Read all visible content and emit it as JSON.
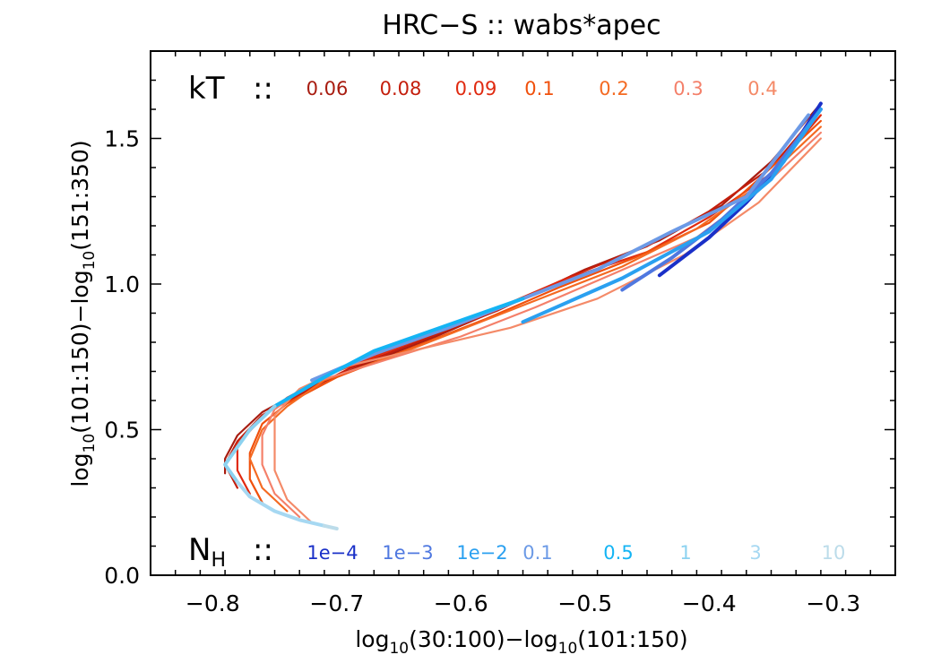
{
  "chart_data": {
    "type": "line",
    "title": "HRC−S :: wabs*apec",
    "xlabel": {
      "pre": "log",
      "sub1": "10",
      "mid": "(30:100)−log",
      "sub2": "10",
      "post": "(101:150)"
    },
    "ylabel": {
      "pre": "log",
      "sub1": "10",
      "mid": "(101:150)−log",
      "sub2": "10",
      "post": "(151:350)"
    },
    "xlim": [
      -0.85,
      -0.25
    ],
    "ylim": [
      0.0,
      1.8
    ],
    "x_ticks": [
      {
        "value": -0.8,
        "label": "−0.8"
      },
      {
        "value": -0.7,
        "label": "−0.7"
      },
      {
        "value": -0.6,
        "label": "−0.6"
      },
      {
        "value": -0.5,
        "label": "−0.5"
      },
      {
        "value": -0.4,
        "label": "−0.4"
      },
      {
        "value": -0.3,
        "label": "−0.3"
      }
    ],
    "y_ticks": [
      {
        "value": 0.0,
        "label": "0.0"
      },
      {
        "value": 0.5,
        "label": "0.5"
      },
      {
        "value": 1.0,
        "label": "1.0"
      },
      {
        "value": 1.5,
        "label": "1.5"
      }
    ],
    "kT_legend": {
      "head": "kT",
      "sep": "::",
      "items": [
        {
          "label": "0.06",
          "color": "#a81c10"
        },
        {
          "label": "0.08",
          "color": "#c41e0c"
        },
        {
          "label": "0.09",
          "color": "#e02a10"
        },
        {
          "label": "0.1",
          "color": "#f0500c"
        },
        {
          "label": "0.2",
          "color": "#f46a22"
        },
        {
          "label": "0.3",
          "color": "#f4806a"
        },
        {
          "label": "0.4",
          "color": "#f48a68"
        }
      ]
    },
    "NH_legend": {
      "head": "N",
      "head_sub": "H",
      "sep": "::",
      "items": [
        {
          "label": "1e−4",
          "color": "#1a30c8"
        },
        {
          "label": "1e−3",
          "color": "#4f78e0"
        },
        {
          "label": "1e−2",
          "color": "#2aa0f0"
        },
        {
          "label": "0.1",
          "color": "#6c9ae6"
        },
        {
          "label": "0.5",
          "color": "#14b4f4"
        },
        {
          "label": "1",
          "color": "#8cd2f0"
        },
        {
          "label": "3",
          "color": "#a6d8f2"
        },
        {
          "label": "10",
          "color": "#bcdcea"
        }
      ]
    },
    "series": [
      {
        "name": "kT=0.06",
        "group": "kT",
        "color": "#a81c10",
        "width": 2.2,
        "x": [
          -0.31,
          -0.35,
          -0.39,
          -0.44,
          -0.5,
          -0.56,
          -0.62,
          -0.68,
          -0.73,
          -0.76,
          -0.78,
          -0.79,
          -0.79
        ],
        "y": [
          1.62,
          1.42,
          1.27,
          1.15,
          1.05,
          0.93,
          0.82,
          0.72,
          0.63,
          0.56,
          0.48,
          0.4,
          0.35
        ]
      },
      {
        "name": "kT=0.08",
        "group": "kT",
        "color": "#c41e0c",
        "width": 2.2,
        "x": [
          -0.31,
          -0.35,
          -0.4,
          -0.45,
          -0.51,
          -0.57,
          -0.63,
          -0.69,
          -0.73,
          -0.76,
          -0.78,
          -0.79,
          -0.78
        ],
        "y": [
          1.6,
          1.4,
          1.25,
          1.13,
          1.03,
          0.91,
          0.81,
          0.71,
          0.62,
          0.55,
          0.46,
          0.38,
          0.3
        ]
      },
      {
        "name": "kT=0.09",
        "group": "kT",
        "color": "#e02a10",
        "width": 2.2,
        "x": [
          -0.31,
          -0.35,
          -0.4,
          -0.45,
          -0.52,
          -0.58,
          -0.64,
          -0.7,
          -0.74,
          -0.76,
          -0.78,
          -0.78,
          -0.77
        ],
        "y": [
          1.58,
          1.38,
          1.23,
          1.11,
          1.01,
          0.9,
          0.8,
          0.7,
          0.61,
          0.54,
          0.45,
          0.36,
          0.28
        ]
      },
      {
        "name": "kT=0.1",
        "group": "kT",
        "color": "#f0500c",
        "width": 2.2,
        "x": [
          -0.31,
          -0.36,
          -0.4,
          -0.46,
          -0.52,
          -0.58,
          -0.64,
          -0.7,
          -0.74,
          -0.76,
          -0.77,
          -0.77,
          -0.76
        ],
        "y": [
          1.56,
          1.36,
          1.21,
          1.09,
          0.99,
          0.88,
          0.78,
          0.68,
          0.59,
          0.52,
          0.42,
          0.33,
          0.25
        ]
      },
      {
        "name": "kT=0.2",
        "group": "kT",
        "color": "#f46a22",
        "width": 2.2,
        "x": [
          -0.31,
          -0.36,
          -0.41,
          -0.47,
          -0.53,
          -0.59,
          -0.65,
          -0.71,
          -0.74,
          -0.76,
          -0.77,
          -0.76,
          -0.74
        ],
        "y": [
          1.54,
          1.34,
          1.19,
          1.06,
          0.96,
          0.86,
          0.76,
          0.67,
          0.58,
          0.5,
          0.4,
          0.3,
          0.22
        ]
      },
      {
        "name": "kT=0.3",
        "group": "kT",
        "color": "#f4806a",
        "width": 2.2,
        "x": [
          -0.31,
          -0.36,
          -0.41,
          -0.48,
          -0.54,
          -0.6,
          -0.66,
          -0.72,
          -0.75,
          -0.76,
          -0.76,
          -0.75,
          -0.73
        ],
        "y": [
          1.52,
          1.32,
          1.16,
          1.03,
          0.92,
          0.82,
          0.74,
          0.66,
          0.57,
          0.48,
          0.38,
          0.28,
          0.2
        ]
      },
      {
        "name": "kT=0.4",
        "group": "kT",
        "color": "#f48a68",
        "width": 2.2,
        "x": [
          -0.31,
          -0.36,
          -0.42,
          -0.49,
          -0.56,
          -0.63,
          -0.69,
          -0.73,
          -0.75,
          -0.75,
          -0.75,
          -0.74,
          -0.72
        ],
        "y": [
          1.5,
          1.28,
          1.1,
          0.95,
          0.85,
          0.78,
          0.72,
          0.64,
          0.55,
          0.46,
          0.36,
          0.26,
          0.18
        ]
      },
      {
        "name": "NH=1e-4",
        "group": "NH",
        "color": "#1a30c8",
        "width": 4,
        "x": [
          -0.31,
          -0.34,
          -0.37,
          -0.4,
          -0.44
        ],
        "y": [
          1.62,
          1.42,
          1.28,
          1.16,
          1.03
        ]
      },
      {
        "name": "NH=1e-3",
        "group": "NH",
        "color": "#4f78e0",
        "width": 4,
        "x": [
          -0.31,
          -0.35,
          -0.39,
          -0.43,
          -0.47
        ],
        "y": [
          1.6,
          1.38,
          1.22,
          1.09,
          0.98
        ]
      },
      {
        "name": "NH=1e-2",
        "group": "NH",
        "color": "#2aa0f0",
        "width": 4,
        "x": [
          -0.31,
          -0.35,
          -0.4,
          -0.47,
          -0.55
        ],
        "y": [
          1.6,
          1.36,
          1.18,
          1.02,
          0.87
        ]
      },
      {
        "name": "NH=0.1",
        "group": "NH",
        "color": "#6c9ae6",
        "width": 4,
        "x": [
          -0.32,
          -0.37,
          -0.43,
          -0.49,
          -0.55,
          -0.61,
          -0.67,
          -0.72
        ],
        "y": [
          1.58,
          1.3,
          1.18,
          1.05,
          0.95,
          0.85,
          0.76,
          0.67
        ]
      },
      {
        "name": "NH=0.5",
        "group": "NH",
        "color": "#14b4f4",
        "width": 4,
        "x": [
          -0.55,
          -0.61,
          -0.67,
          -0.71,
          -0.75
        ],
        "y": [
          0.95,
          0.86,
          0.77,
          0.68,
          0.58
        ]
      },
      {
        "name": "NH=1",
        "group": "NH",
        "color": "#8cd2f0",
        "width": 4,
        "x": [
          -0.75,
          -0.77,
          -0.78,
          -0.79,
          -0.78
        ],
        "y": [
          0.58,
          0.5,
          0.44,
          0.38,
          0.32
        ]
      },
      {
        "name": "NH=3",
        "group": "NH",
        "color": "#a6d8f2",
        "width": 4,
        "x": [
          -0.78,
          -0.77,
          -0.75,
          -0.73,
          -0.71
        ],
        "y": [
          0.32,
          0.27,
          0.22,
          0.19,
          0.17
        ]
      },
      {
        "name": "NH=10",
        "group": "NH",
        "color": "#bcdcea",
        "width": 4,
        "x": [
          -0.71,
          -0.7
        ],
        "y": [
          0.17,
          0.16
        ]
      }
    ]
  }
}
